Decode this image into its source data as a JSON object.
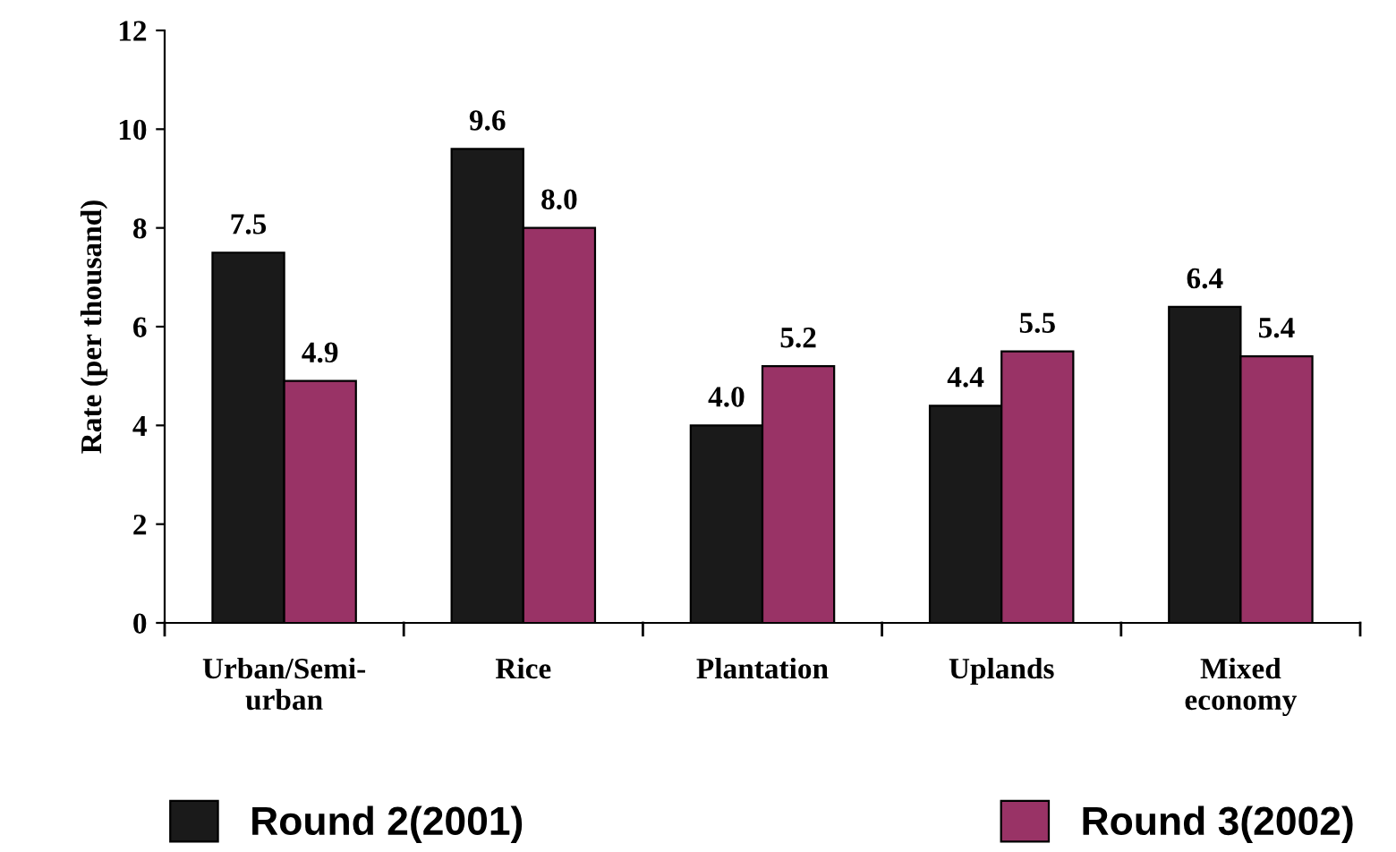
{
  "chart_data": {
    "type": "bar",
    "ylabel": "Rate (per thousand)",
    "categories": [
      "Urban/Semi-\nurban",
      "Rice",
      "Plantation",
      "Uplands",
      "Mixed\neconomy"
    ],
    "series": [
      {
        "name": "Round 2(2001)",
        "color": "#1a1a1a",
        "values": [
          7.5,
          9.6,
          4.0,
          4.4,
          6.4
        ],
        "value_labels": [
          "7.5",
          "9.6",
          "4.0",
          "4.4",
          "6.4"
        ]
      },
      {
        "name": "Round 3(2002)",
        "color": "#993366",
        "values": [
          4.9,
          8.0,
          5.2,
          5.5,
          5.4
        ],
        "value_labels": [
          "4.9",
          "8.0",
          "5.2",
          "5.5",
          "5.4"
        ]
      }
    ],
    "ylim": [
      0,
      12
    ],
    "yticks": [
      0,
      2,
      4,
      6,
      8,
      10,
      12
    ],
    "legend": "bottom",
    "grid": false
  }
}
